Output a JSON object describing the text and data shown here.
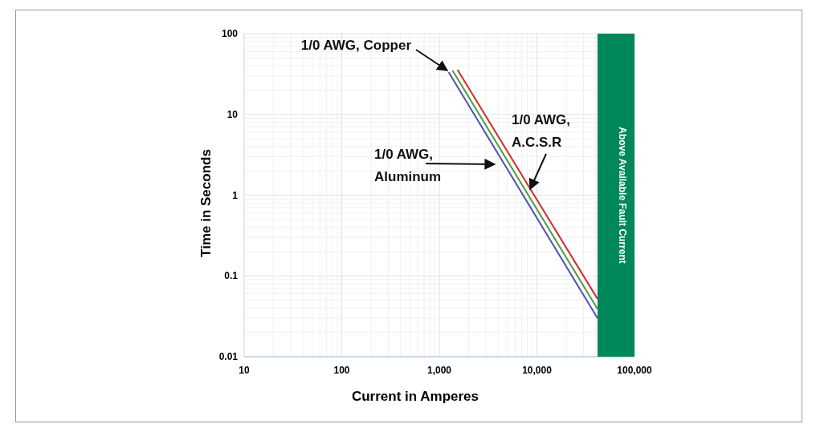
{
  "chart_data": {
    "type": "line",
    "xlabel": "Current in Amperes",
    "ylabel": "Time in Seconds",
    "log": "xy",
    "grid": true,
    "xlim": [
      10,
      100000
    ],
    "ylim": [
      0.01,
      100
    ],
    "xticks": [
      10,
      100,
      {
        "value": 1000,
        "label": "1,000"
      },
      {
        "value": 10000,
        "label": "10,000"
      },
      {
        "value": 100000,
        "label": "100,000"
      }
    ],
    "yticks": [
      0.01,
      0.1,
      1,
      10,
      100
    ],
    "series": [
      {
        "name": "1/0 AWG, A.C.S.R",
        "color": "#d42a2a",
        "x": [
          1535,
          41800
        ],
        "values": [
          35.7,
          0.052
        ]
      },
      {
        "name": "1/0 AWG, Copper",
        "color": "#4a9e3a",
        "x": [
          1368,
          41800
        ],
        "values": [
          34.9,
          0.039
        ]
      },
      {
        "name": "1/0 AWG, Aluminum",
        "color": "#5050b0",
        "x": [
          1245,
          41800
        ],
        "values": [
          33.4,
          0.03
        ]
      }
    ],
    "bands": [
      {
        "axis": "x",
        "from": 41800,
        "to": 100000,
        "label": "Above Available Fault Current",
        "color": "#00875a"
      }
    ]
  }
}
